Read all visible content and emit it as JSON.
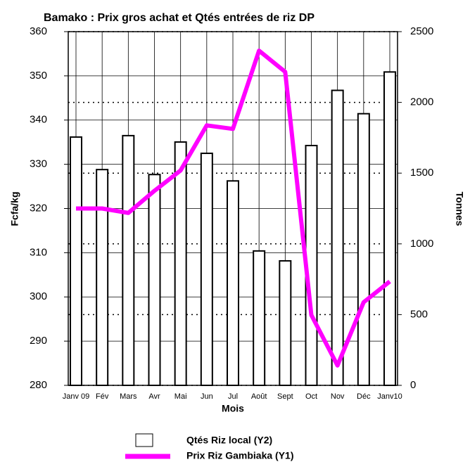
{
  "chart_data": {
    "type": "bar_line",
    "title": "Bamako : Prix  gros achat et Qtés entrées  de riz DP",
    "x_label": "Mois",
    "y_label": "Fcfa/kg",
    "y2_label": "Tonnes",
    "categories": [
      "Janv 09",
      "Fév",
      "Mars",
      "Avr",
      "Mai",
      "Jun",
      "Jul",
      "Août",
      "Sept",
      "Oct",
      "Nov",
      "Déc",
      "Janv10"
    ],
    "series": [
      {
        "name": "Qtés Riz local (Y2)",
        "type": "bar",
        "axis": "y2",
        "color": "#ffffff",
        "values": [
          1755,
          1525,
          1765,
          1490,
          1720,
          1640,
          1445,
          950,
          880,
          1695,
          2085,
          1920,
          2215
        ]
      },
      {
        "name": "Prix Riz Gambiaka (Y1)",
        "type": "line",
        "axis": "y",
        "color": "#ff00ff",
        "values": [
          320,
          320,
          319,
          324,
          328.6,
          338.8,
          338,
          355.7,
          350.9,
          295.9,
          284.5,
          298.8,
          303.5
        ]
      }
    ],
    "ylim": [
      280,
      360
    ],
    "yticks": [
      280,
      290,
      300,
      310,
      320,
      330,
      340,
      350,
      360
    ],
    "y2lim": [
      0,
      2500
    ],
    "y2ticks": [
      0,
      500,
      1000,
      1500,
      2000,
      2500
    ],
    "grid": true
  }
}
